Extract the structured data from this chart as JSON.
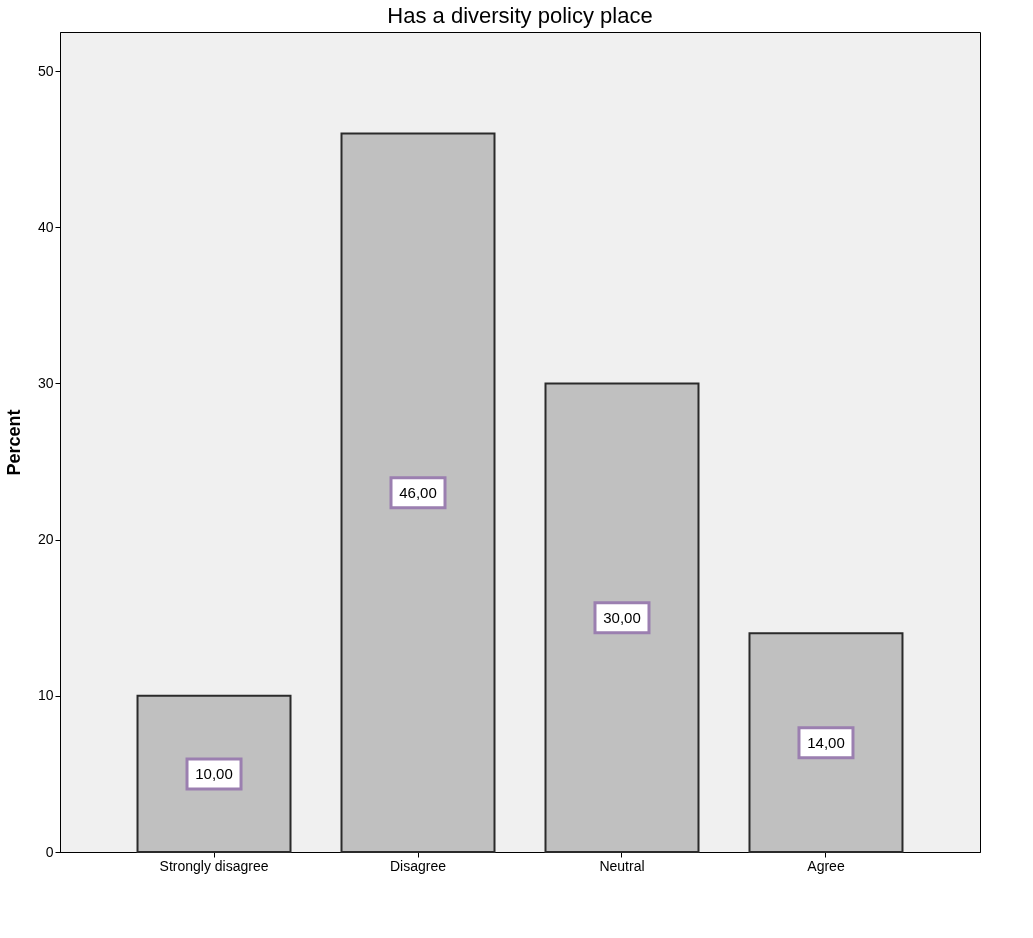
{
  "chart_data": {
    "type": "bar",
    "title": "Has a diversity policy place",
    "ylabel": "Percent",
    "categories": [
      "Strongly disagree",
      "Disagree",
      "Neutral",
      "Agree"
    ],
    "values": [
      10,
      46,
      30,
      14
    ],
    "color": "#c0c0c0",
    "value_labels": [
      "10,00",
      "46,00",
      "30,00",
      "14,00"
    ],
    "ylim": [
      0,
      52.5
    ],
    "yticks": [
      0,
      10,
      20,
      30,
      40,
      50
    ],
    "grid": false
  }
}
